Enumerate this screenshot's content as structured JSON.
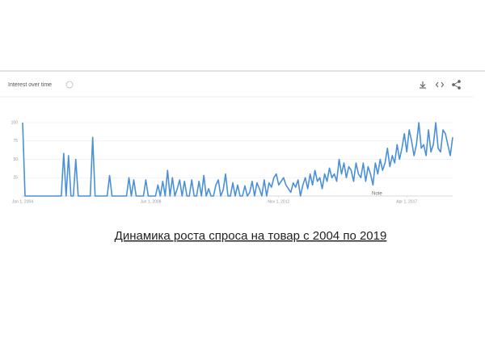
{
  "chart_data": {
    "type": "line",
    "title": "Interest over time",
    "note": "Note",
    "caption": "Динамика роста  спроса на товар с 2004 по 2019",
    "color": "#4a90d9",
    "grid": true,
    "ylim": [
      0,
      100
    ],
    "yticks": [
      25,
      50,
      75,
      100
    ],
    "xlim": [
      "2004-01",
      "2018-11"
    ],
    "xticks": [
      {
        "value": "2004-01",
        "label": "Jan 1, 2004"
      },
      {
        "value": "2008-06",
        "label": "Jun 1, 2008"
      },
      {
        "value": "2012-11",
        "label": "Nov 1, 2012"
      },
      {
        "value": "2017-04",
        "label": "Apr 1, 2017"
      }
    ],
    "x": [
      "2004-01",
      "2004-02",
      "2004-03",
      "2004-04",
      "2004-05",
      "2004-06",
      "2004-07",
      "2004-08",
      "2004-09",
      "2004-10",
      "2004-11",
      "2004-12",
      "2005-01",
      "2005-02",
      "2005-03",
      "2005-04",
      "2005-05",
      "2005-06",
      "2005-07",
      "2005-08",
      "2005-09",
      "2005-10",
      "2005-11",
      "2005-12",
      "2006-01",
      "2006-02",
      "2006-03",
      "2006-04",
      "2006-05",
      "2006-06",
      "2006-07",
      "2006-08",
      "2006-09",
      "2006-10",
      "2006-11",
      "2006-12",
      "2007-01",
      "2007-02",
      "2007-03",
      "2007-04",
      "2007-05",
      "2007-06",
      "2007-07",
      "2007-08",
      "2007-09",
      "2007-10",
      "2007-11",
      "2007-12",
      "2008-01",
      "2008-02",
      "2008-03",
      "2008-04",
      "2008-05",
      "2008-06",
      "2008-07",
      "2008-08",
      "2008-09",
      "2008-10",
      "2008-11",
      "2008-12",
      "2009-01",
      "2009-02",
      "2009-03",
      "2009-04",
      "2009-05",
      "2009-06",
      "2009-07",
      "2009-08",
      "2009-09",
      "2009-10",
      "2009-11",
      "2009-12",
      "2010-01",
      "2010-02",
      "2010-03",
      "2010-04",
      "2010-05",
      "2010-06",
      "2010-07",
      "2010-08",
      "2010-09",
      "2010-10",
      "2010-11",
      "2010-12",
      "2011-01",
      "2011-02",
      "2011-03",
      "2011-04",
      "2011-05",
      "2011-06",
      "2011-07",
      "2011-08",
      "2011-09",
      "2011-10",
      "2011-11",
      "2011-12",
      "2012-01",
      "2012-02",
      "2012-03",
      "2012-04",
      "2012-05",
      "2012-06",
      "2012-07",
      "2012-08",
      "2012-09",
      "2012-10",
      "2012-11",
      "2012-12",
      "2013-01",
      "2013-02",
      "2013-03",
      "2013-04",
      "2013-05",
      "2013-06",
      "2013-07",
      "2013-08",
      "2013-09",
      "2013-10",
      "2013-11",
      "2013-12",
      "2014-01",
      "2014-02",
      "2014-03",
      "2014-04",
      "2014-05",
      "2014-06",
      "2014-07",
      "2014-08",
      "2014-09",
      "2014-10",
      "2014-11",
      "2014-12",
      "2015-01",
      "2015-02",
      "2015-03",
      "2015-04",
      "2015-05",
      "2015-06",
      "2015-07",
      "2015-08",
      "2015-09",
      "2015-10",
      "2015-11",
      "2015-12",
      "2016-01",
      "2016-02",
      "2016-03",
      "2016-04",
      "2016-05",
      "2016-06",
      "2016-07",
      "2016-08",
      "2016-09",
      "2016-10",
      "2016-11",
      "2016-12",
      "2017-01",
      "2017-02",
      "2017-03",
      "2017-04",
      "2017-05",
      "2017-06",
      "2017-07",
      "2017-08",
      "2017-09",
      "2017-10",
      "2017-11",
      "2017-12",
      "2018-01",
      "2018-02",
      "2018-03",
      "2018-04",
      "2018-05",
      "2018-06",
      "2018-07",
      "2018-08",
      "2018-09",
      "2018-10",
      "2018-11"
    ],
    "values": [
      100,
      0,
      0,
      0,
      0,
      0,
      0,
      0,
      0,
      0,
      0,
      0,
      0,
      0,
      0,
      0,
      0,
      58,
      0,
      55,
      0,
      0,
      50,
      0,
      0,
      0,
      0,
      0,
      0,
      80,
      0,
      0,
      0,
      0,
      0,
      0,
      28,
      0,
      0,
      0,
      0,
      0,
      0,
      0,
      25,
      0,
      22,
      0,
      0,
      0,
      0,
      22,
      0,
      0,
      0,
      0,
      15,
      0,
      20,
      0,
      35,
      0,
      25,
      0,
      10,
      22,
      0,
      20,
      0,
      0,
      22,
      0,
      0,
      20,
      0,
      28,
      0,
      10,
      0,
      0,
      15,
      22,
      0,
      8,
      30,
      0,
      0,
      18,
      0,
      15,
      0,
      0,
      14,
      0,
      5,
      20,
      0,
      18,
      10,
      0,
      22,
      0,
      18,
      12,
      25,
      30,
      15,
      20,
      25,
      15,
      10,
      5,
      18,
      12,
      22,
      0,
      15,
      25,
      10,
      30,
      15,
      35,
      20,
      25,
      10,
      30,
      20,
      38,
      25,
      30,
      20,
      50,
      30,
      45,
      25,
      40,
      35,
      20,
      45,
      30,
      25,
      45,
      20,
      40,
      30,
      15,
      45,
      30,
      50,
      35,
      45,
      65,
      40,
      55,
      45,
      70,
      50,
      65,
      85,
      60,
      90,
      75,
      55,
      70,
      100,
      65,
      70,
      55,
      90,
      60,
      70,
      100,
      65,
      60,
      90,
      85,
      70,
      55,
      80
    ]
  }
}
